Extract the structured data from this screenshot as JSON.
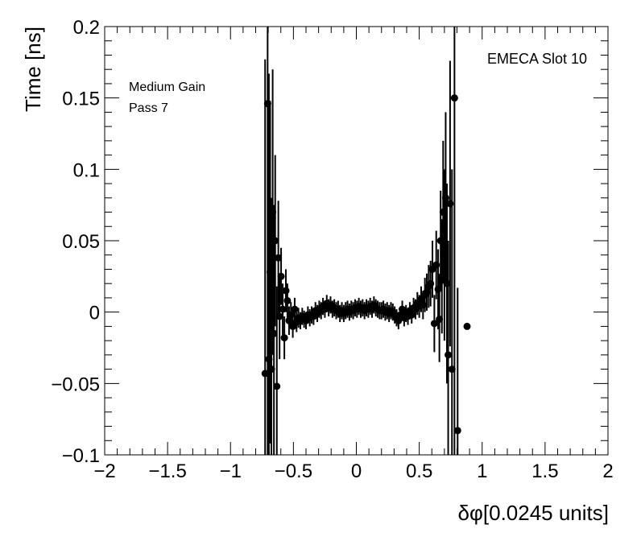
{
  "chart_data": {
    "type": "scatter",
    "title": "",
    "xlabel": "δφ[0.0245 units]",
    "ylabel": "Time [ns]",
    "xlim": [
      -2,
      2
    ],
    "ylim": [
      -0.1,
      0.2
    ],
    "x_ticks": [
      -2,
      -1.5,
      -1,
      -0.5,
      0,
      0.5,
      1,
      1.5,
      2
    ],
    "x_tick_labels": [
      "−2",
      "−1.5",
      "−1",
      "−0.5",
      "0",
      "0.5",
      "1",
      "1.5",
      "2"
    ],
    "y_ticks": [
      -0.1,
      -0.05,
      0,
      0.05,
      0.1,
      0.15,
      0.2
    ],
    "y_tick_labels": [
      "−0.1",
      "−0.05",
      "0",
      "0.05",
      "0.1",
      "0.15",
      "0.2"
    ],
    "grid": false,
    "annotations": {
      "top_right": "EMECA Slot 10",
      "line1": "Medium Gain",
      "line2": "Pass 7"
    },
    "marker_color": "#000000",
    "points": [
      {
        "x": -0.725,
        "y": -0.043,
        "err": 0.22
      },
      {
        "x": -0.705,
        "y": 0.146,
        "err": 0.25
      },
      {
        "x": -0.695,
        "y": -0.033,
        "err": 0.2
      },
      {
        "x": -0.685,
        "y": 0.028,
        "err": 0.12
      },
      {
        "x": -0.675,
        "y": -0.04,
        "err": 0.12
      },
      {
        "x": -0.665,
        "y": 0.07,
        "err": 0.1
      },
      {
        "x": -0.655,
        "y": -0.015,
        "err": 0.09
      },
      {
        "x": -0.645,
        "y": 0.05,
        "err": 0.06
      },
      {
        "x": -0.632,
        "y": -0.052,
        "err": 0.07
      },
      {
        "x": -0.62,
        "y": 0.038,
        "err": 0.04
      },
      {
        "x": -0.61,
        "y": -0.003,
        "err": 0.03
      },
      {
        "x": -0.598,
        "y": 0.025,
        "err": 0.02
      },
      {
        "x": -0.585,
        "y": 0.002,
        "err": 0.018
      },
      {
        "x": -0.572,
        "y": -0.018,
        "err": 0.015
      },
      {
        "x": -0.56,
        "y": 0.015,
        "err": 0.015
      },
      {
        "x": -0.548,
        "y": 0.008,
        "err": 0.012
      },
      {
        "x": -0.535,
        "y": -0.006,
        "err": 0.01
      },
      {
        "x": -0.52,
        "y": -0.002,
        "err": 0.009
      },
      {
        "x": -0.505,
        "y": -0.01,
        "err": 0.008
      },
      {
        "x": -0.49,
        "y": 0.002,
        "err": 0.008
      },
      {
        "x": -0.475,
        "y": -0.007,
        "err": 0.007
      },
      {
        "x": -0.46,
        "y": -0.004,
        "err": 0.007
      },
      {
        "x": -0.445,
        "y": -0.006,
        "err": 0.006
      },
      {
        "x": -0.43,
        "y": -0.003,
        "err": 0.006
      },
      {
        "x": -0.415,
        "y": -0.005,
        "err": 0.006
      },
      {
        "x": -0.4,
        "y": -0.006,
        "err": 0.006
      },
      {
        "x": -0.385,
        "y": -0.002,
        "err": 0.006
      },
      {
        "x": -0.37,
        "y": -0.004,
        "err": 0.006
      },
      {
        "x": -0.355,
        "y": -0.002,
        "err": 0.006
      },
      {
        "x": -0.34,
        "y": -0.003,
        "err": 0.006
      },
      {
        "x": -0.325,
        "y": 0.001,
        "err": 0.006
      },
      {
        "x": -0.31,
        "y": -0.001,
        "err": 0.006
      },
      {
        "x": -0.295,
        "y": 0.002,
        "err": 0.006
      },
      {
        "x": -0.28,
        "y": 0.001,
        "err": 0.006
      },
      {
        "x": -0.265,
        "y": 0.004,
        "err": 0.006
      },
      {
        "x": -0.25,
        "y": 0.002,
        "err": 0.006
      },
      {
        "x": -0.235,
        "y": 0.006,
        "err": 0.006
      },
      {
        "x": -0.22,
        "y": 0.003,
        "err": 0.006
      },
      {
        "x": -0.205,
        "y": 0.005,
        "err": 0.006
      },
      {
        "x": -0.19,
        "y": 0.002,
        "err": 0.006
      },
      {
        "x": -0.175,
        "y": 0.003,
        "err": 0.006
      },
      {
        "x": -0.16,
        "y": 0.001,
        "err": 0.006
      },
      {
        "x": -0.145,
        "y": 0.002,
        "err": 0.006
      },
      {
        "x": -0.13,
        "y": -0.001,
        "err": 0.006
      },
      {
        "x": -0.115,
        "y": 0.001,
        "err": 0.006
      },
      {
        "x": -0.1,
        "y": -0.001,
        "err": 0.006
      },
      {
        "x": -0.085,
        "y": 0.001,
        "err": 0.006
      },
      {
        "x": -0.07,
        "y": 0.002,
        "err": 0.006
      },
      {
        "x": -0.055,
        "y": 0.0,
        "err": 0.006
      },
      {
        "x": -0.04,
        "y": 0.002,
        "err": 0.006
      },
      {
        "x": -0.025,
        "y": 0.001,
        "err": 0.006
      },
      {
        "x": -0.01,
        "y": 0.003,
        "err": 0.006
      },
      {
        "x": 0.005,
        "y": 0.002,
        "err": 0.006
      },
      {
        "x": 0.02,
        "y": 0.004,
        "err": 0.006
      },
      {
        "x": 0.035,
        "y": 0.002,
        "err": 0.006
      },
      {
        "x": 0.05,
        "y": 0.003,
        "err": 0.006
      },
      {
        "x": 0.065,
        "y": 0.001,
        "err": 0.006
      },
      {
        "x": 0.08,
        "y": 0.003,
        "err": 0.006
      },
      {
        "x": 0.095,
        "y": 0.002,
        "err": 0.006
      },
      {
        "x": 0.11,
        "y": 0.004,
        "err": 0.006
      },
      {
        "x": 0.125,
        "y": 0.002,
        "err": 0.006
      },
      {
        "x": 0.14,
        "y": 0.005,
        "err": 0.006
      },
      {
        "x": 0.155,
        "y": 0.003,
        "err": 0.006
      },
      {
        "x": 0.17,
        "y": 0.002,
        "err": 0.006
      },
      {
        "x": 0.185,
        "y": 0.001,
        "err": 0.006
      },
      {
        "x": 0.2,
        "y": 0.001,
        "err": 0.006
      },
      {
        "x": 0.215,
        "y": 0.002,
        "err": 0.006
      },
      {
        "x": 0.23,
        "y": 0.0,
        "err": 0.006
      },
      {
        "x": 0.245,
        "y": 0.001,
        "err": 0.006
      },
      {
        "x": 0.26,
        "y": -0.001,
        "err": 0.006
      },
      {
        "x": 0.275,
        "y": 0.001,
        "err": 0.006
      },
      {
        "x": 0.29,
        "y": 0.0,
        "err": 0.006
      },
      {
        "x": 0.305,
        "y": -0.002,
        "err": 0.006
      },
      {
        "x": 0.32,
        "y": -0.004,
        "err": 0.006
      },
      {
        "x": 0.335,
        "y": -0.006,
        "err": 0.006
      },
      {
        "x": 0.35,
        "y": -0.002,
        "err": 0.006
      },
      {
        "x": 0.365,
        "y": 0.002,
        "err": 0.006
      },
      {
        "x": 0.38,
        "y": -0.004,
        "err": 0.006
      },
      {
        "x": 0.395,
        "y": -0.001,
        "err": 0.006
      },
      {
        "x": 0.41,
        "y": -0.003,
        "err": 0.006
      },
      {
        "x": 0.425,
        "y": 0.001,
        "err": 0.006
      },
      {
        "x": 0.44,
        "y": -0.002,
        "err": 0.006
      },
      {
        "x": 0.455,
        "y": 0.003,
        "err": 0.007
      },
      {
        "x": 0.47,
        "y": 0.002,
        "err": 0.007
      },
      {
        "x": 0.485,
        "y": 0.006,
        "err": 0.008
      },
      {
        "x": 0.5,
        "y": 0.004,
        "err": 0.008
      },
      {
        "x": 0.515,
        "y": 0.009,
        "err": 0.009
      },
      {
        "x": 0.53,
        "y": 0.005,
        "err": 0.01
      },
      {
        "x": 0.545,
        "y": 0.012,
        "err": 0.012
      },
      {
        "x": 0.56,
        "y": 0.014,
        "err": 0.013
      },
      {
        "x": 0.575,
        "y": 0.018,
        "err": 0.015
      },
      {
        "x": 0.59,
        "y": 0.02,
        "err": 0.016
      },
      {
        "x": 0.605,
        "y": 0.03,
        "err": 0.02
      },
      {
        "x": 0.62,
        "y": -0.008,
        "err": 0.02
      },
      {
        "x": 0.635,
        "y": 0.033,
        "err": 0.024
      },
      {
        "x": 0.65,
        "y": 0.016,
        "err": 0.028
      },
      {
        "x": 0.66,
        "y": -0.005,
        "err": 0.03
      },
      {
        "x": 0.67,
        "y": 0.05,
        "err": 0.035
      },
      {
        "x": 0.68,
        "y": 0.025,
        "err": 0.04
      },
      {
        "x": 0.69,
        "y": 0.07,
        "err": 0.05
      },
      {
        "x": 0.7,
        "y": 0.04,
        "err": 0.06
      },
      {
        "x": 0.71,
        "y": 0.08,
        "err": 0.06
      },
      {
        "x": 0.72,
        "y": 0.02,
        "err": 0.07
      },
      {
        "x": 0.73,
        "y": -0.03,
        "err": 0.08
      },
      {
        "x": 0.745,
        "y": 0.076,
        "err": 0.1
      },
      {
        "x": 0.76,
        "y": -0.04,
        "err": 0.14
      },
      {
        "x": 0.78,
        "y": 0.15,
        "err": 0.25
      },
      {
        "x": 0.805,
        "y": -0.083,
        "err": 0.1
      },
      {
        "x": 0.88,
        "y": -0.01,
        "err": 0.0
      }
    ]
  }
}
